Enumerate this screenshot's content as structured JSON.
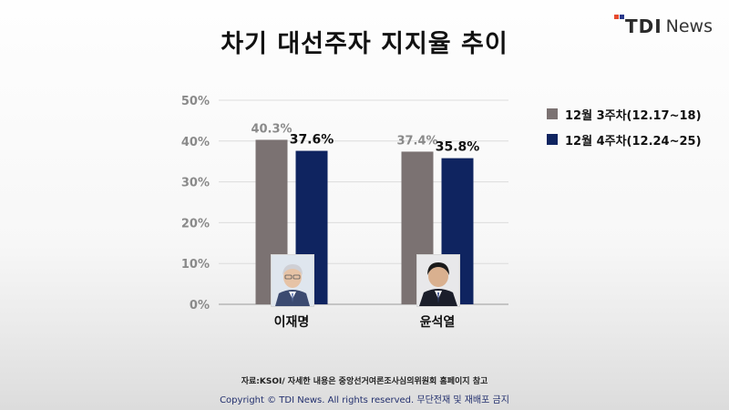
{
  "title": "차기 대선주자 지지율 추이",
  "logo": {
    "mark": "TDI",
    "text": "News"
  },
  "chart_data": {
    "type": "bar",
    "title": "차기 대선주자 지지율 추이",
    "categories": [
      "이재명",
      "윤석열"
    ],
    "series": [
      {
        "name": "12월 3주차(12.17~18)",
        "values": [
          40.3,
          37.4
        ],
        "labels": [
          "40.3%",
          "37.4%"
        ],
        "color": "#7b7272"
      },
      {
        "name": "12월 4주차(12.24~25)",
        "values": [
          37.6,
          35.8
        ],
        "labels": [
          "37.6%",
          "35.8%"
        ],
        "color": "#0f2460"
      }
    ],
    "ylim": [
      0,
      50
    ],
    "yticks": [
      "0%",
      "10%",
      "20%",
      "30%",
      "40%",
      "50%"
    ],
    "grid": true,
    "legend": "right"
  },
  "footer": {
    "source": "자료:KSOI/ 자세한 내용은 중앙선거여론조사심의위원회 홈페이지 참고",
    "copyright": "Copyright © TDI News. All rights reserved. 무단전재 및 재배포 금지"
  }
}
